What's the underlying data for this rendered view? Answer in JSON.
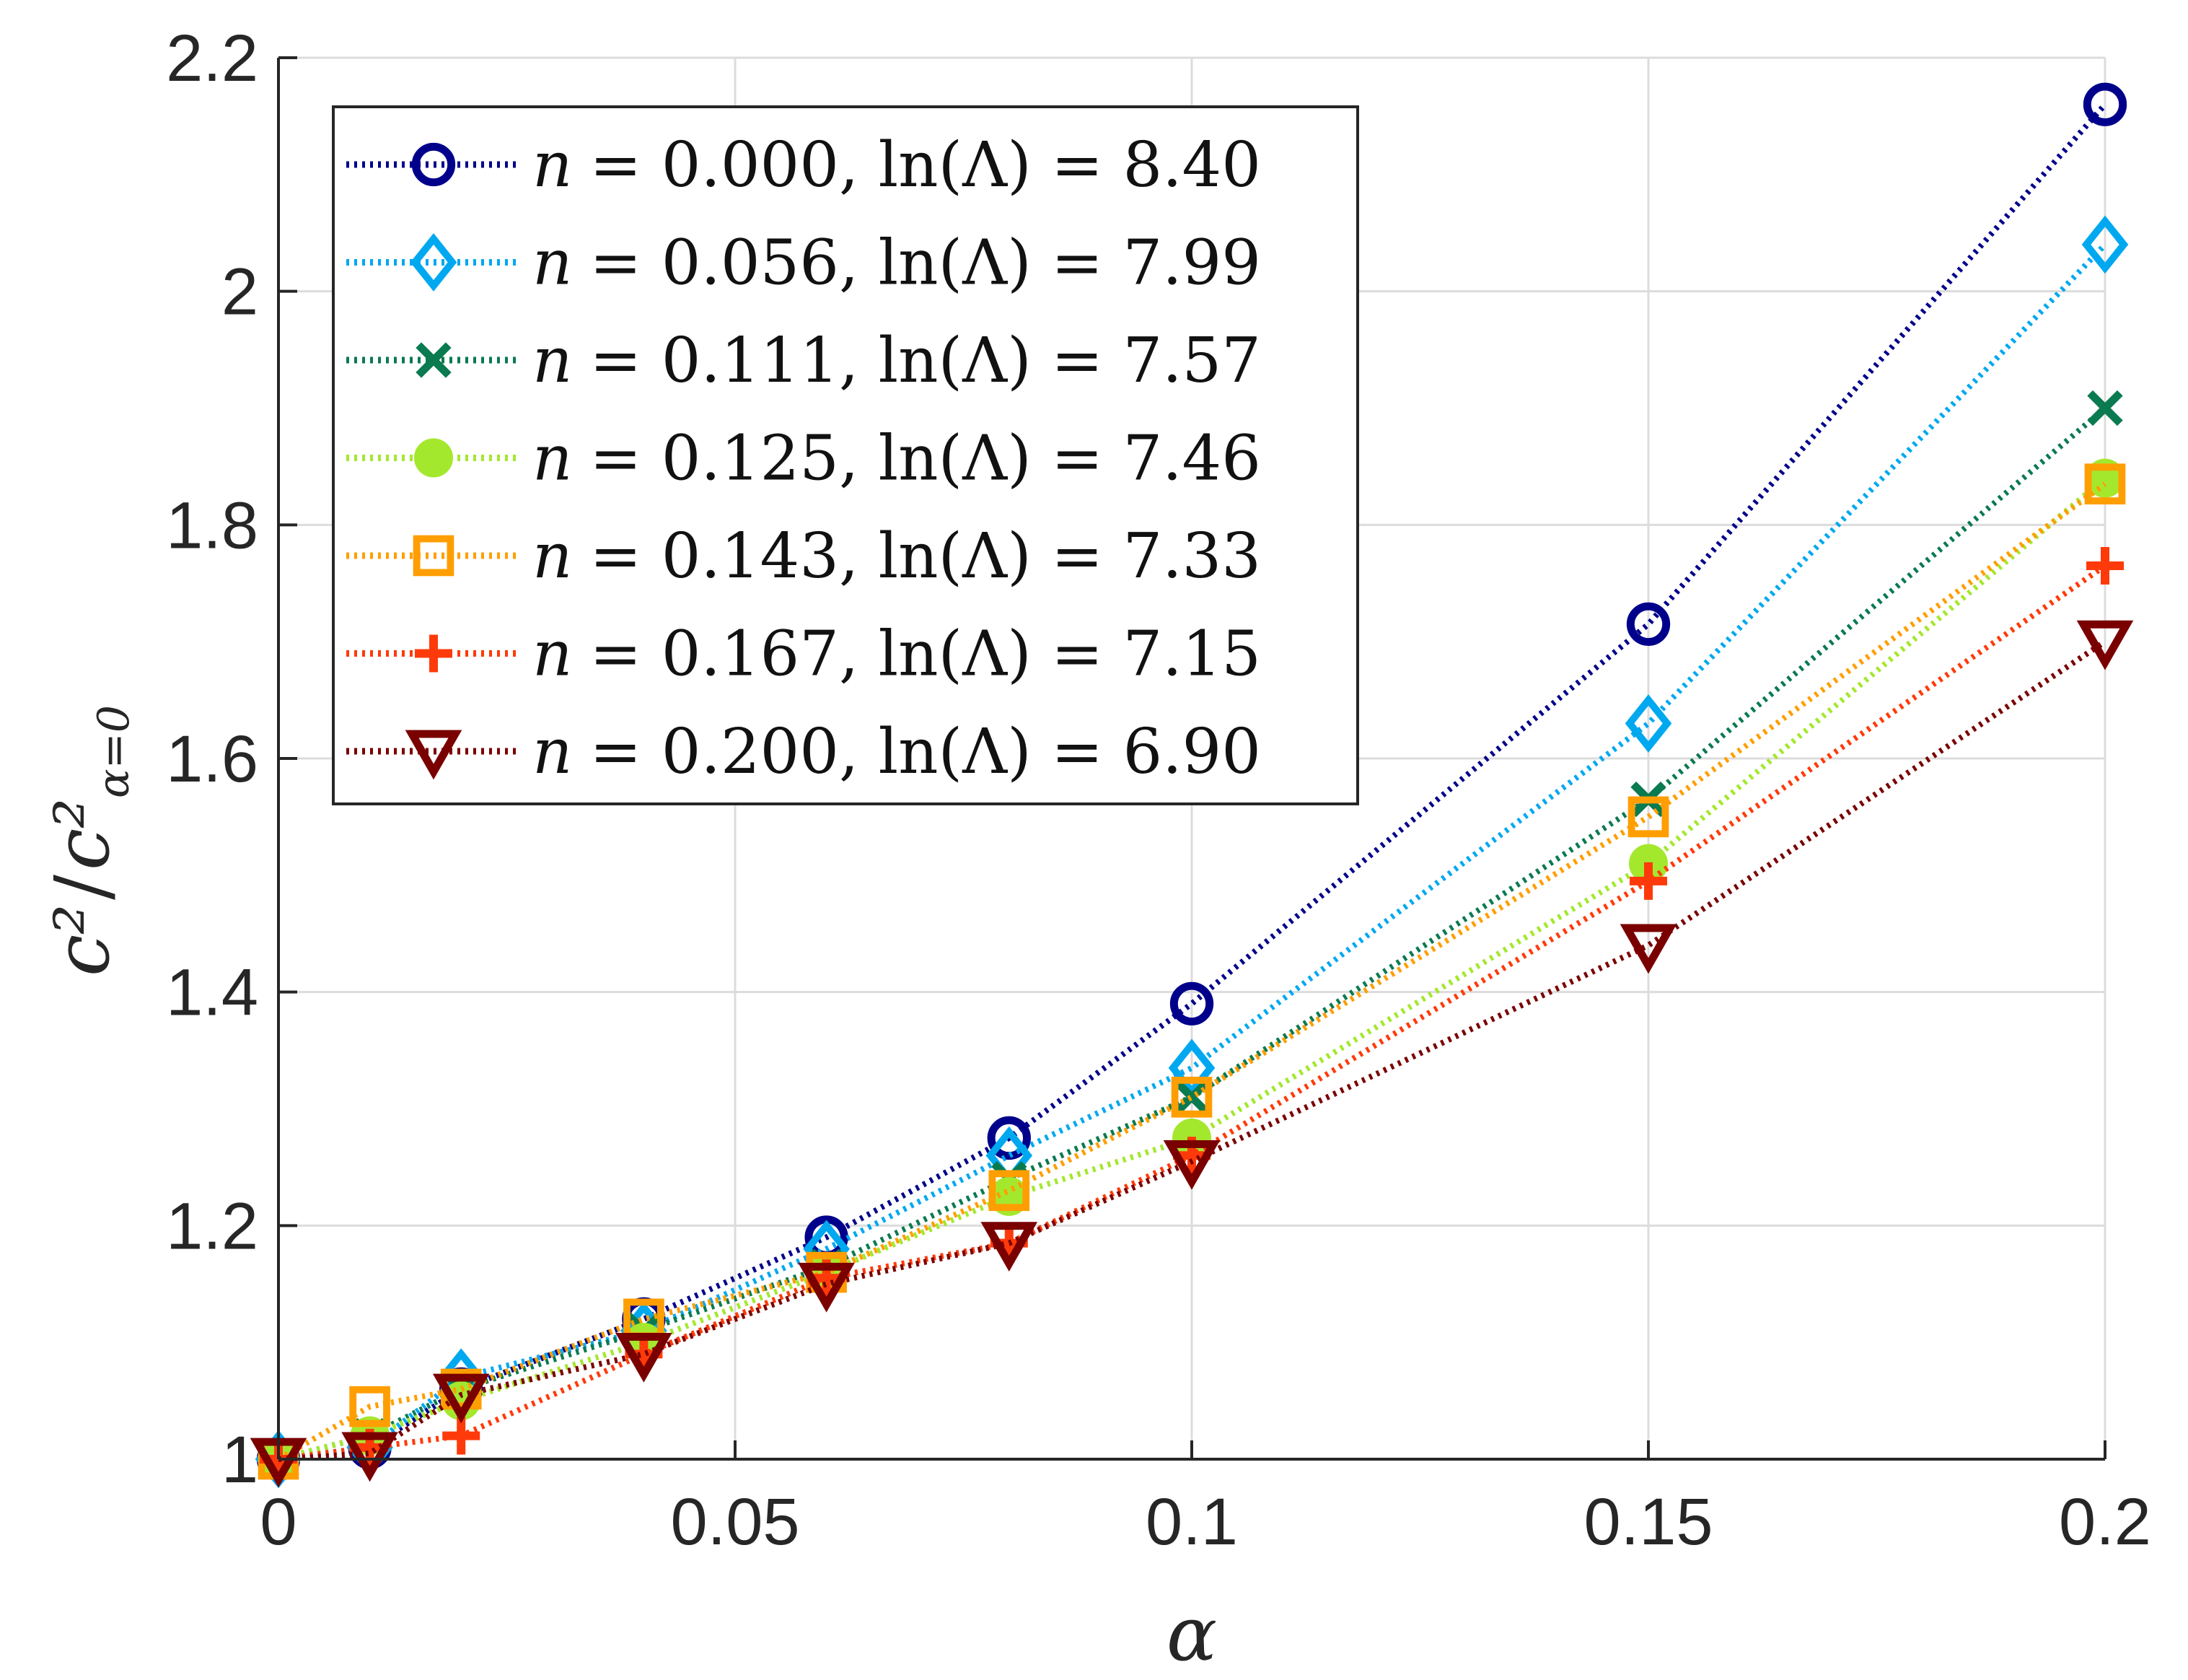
{
  "chart_data": {
    "type": "line",
    "title": "",
    "xlabel": "α",
    "ylabel_main": "c²",
    "ylabel_sep": "/",
    "ylabel_denom": "c²",
    "ylabel_denom_sub": "α=0",
    "xlim": [
      0,
      0.2
    ],
    "ylim": [
      1,
      2.2
    ],
    "xticks": [
      0,
      0.05,
      0.1,
      0.15,
      0.2
    ],
    "xtick_labels": [
      "0",
      "0.05",
      "0.1",
      "0.15",
      "0.2"
    ],
    "yticks": [
      1,
      1.2,
      1.4,
      1.6,
      1.8,
      2,
      2.2
    ],
    "ytick_labels": [
      "1",
      "1.2",
      "1.4",
      "1.6",
      "1.8",
      "2",
      "2.2"
    ],
    "grid": true,
    "legend_position": "top-left",
    "line_style": "dotted",
    "series": [
      {
        "name": "n = 0.000, ln(Λ) = 8.40",
        "n_label": "n",
        "rest_label": "= 0.000, ln(Λ) = 8.40",
        "color": "#00008B",
        "marker": "circle",
        "x": [
          0,
          0.01,
          0.02,
          0.04,
          0.06,
          0.08,
          0.1,
          0.15,
          0.2
        ],
        "y": [
          1.0,
          1.01,
          1.06,
          1.12,
          1.19,
          1.275,
          1.39,
          1.715,
          2.16
        ]
      },
      {
        "name": "n = 0.056, ln(Λ) = 7.99",
        "n_label": "n",
        "rest_label": "= 0.056, ln(Λ) = 7.99",
        "color": "#00A8F0",
        "marker": "diamond",
        "x": [
          0,
          0.01,
          0.02,
          0.04,
          0.06,
          0.08,
          0.1,
          0.15,
          0.2
        ],
        "y": [
          1.0,
          1.01,
          1.07,
          1.11,
          1.18,
          1.26,
          1.335,
          1.63,
          2.04
        ]
      },
      {
        "name": "n = 0.111, ln(Λ) = 7.57",
        "n_label": "n",
        "rest_label": "= 0.111, ln(Λ) = 7.57",
        "color": "#0A7A50",
        "marker": "x",
        "x": [
          0,
          0.01,
          0.02,
          0.04,
          0.06,
          0.08,
          0.1,
          0.15,
          0.2
        ],
        "y": [
          1.0,
          1.02,
          1.06,
          1.11,
          1.165,
          1.24,
          1.31,
          1.565,
          1.9
        ]
      },
      {
        "name": "n = 0.125, ln(Λ) = 7.46",
        "n_label": "n",
        "rest_label": "= 0.125, ln(Λ) = 7.46",
        "color": "#A4E82E",
        "marker": "filled-circle",
        "x": [
          0,
          0.01,
          0.02,
          0.04,
          0.06,
          0.08,
          0.1,
          0.15,
          0.2
        ],
        "y": [
          1.0,
          1.02,
          1.05,
          1.1,
          1.16,
          1.225,
          1.275,
          1.51,
          1.84
        ]
      },
      {
        "name": "n = 0.143, ln(Λ) = 7.33",
        "n_label": "n",
        "rest_label": "= 0.143, ln(Λ) = 7.33",
        "color": "#FF9E00",
        "marker": "square",
        "x": [
          0,
          0.01,
          0.02,
          0.04,
          0.06,
          0.08,
          0.1,
          0.15,
          0.2
        ],
        "y": [
          1.0,
          1.045,
          1.06,
          1.12,
          1.16,
          1.23,
          1.31,
          1.55,
          1.835
        ]
      },
      {
        "name": "n = 0.167, ln(Λ) = 7.15",
        "n_label": "n",
        "rest_label": "= 0.167, ln(Λ) = 7.15",
        "color": "#FF3A0A",
        "marker": "plus",
        "x": [
          0,
          0.01,
          0.02,
          0.04,
          0.06,
          0.08,
          0.1,
          0.15,
          0.2
        ],
        "y": [
          1.0,
          1.01,
          1.02,
          1.09,
          1.155,
          1.185,
          1.26,
          1.495,
          1.765
        ]
      },
      {
        "name": "n = 0.200, ln(Λ) = 6.90",
        "n_label": "n",
        "rest_label": "= 0.200, ln(Λ) = 6.90",
        "color": "#7A0000",
        "marker": "triangle-down",
        "x": [
          0,
          0.01,
          0.02,
          0.04,
          0.06,
          0.08,
          0.1,
          0.15,
          0.2
        ],
        "y": [
          1.0,
          1.005,
          1.055,
          1.09,
          1.15,
          1.185,
          1.255,
          1.44,
          1.7
        ]
      }
    ]
  }
}
